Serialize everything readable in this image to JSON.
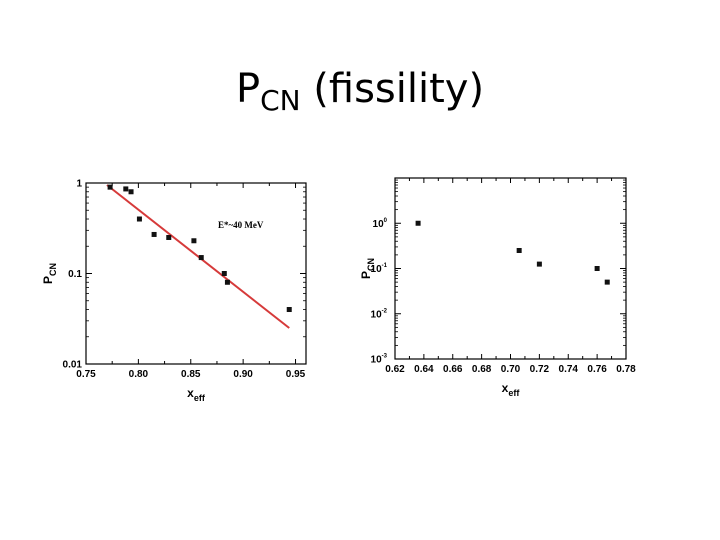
{
  "title": {
    "main": "P",
    "sub": "CN",
    "rest": " (fissility)"
  },
  "chart_data": [
    {
      "type": "scatter",
      "title": "",
      "xlabel": {
        "main": "x",
        "sub": "eff"
      },
      "ylabel": {
        "main": "P",
        "sub": "CN"
      },
      "xlim": [
        0.75,
        0.96
      ],
      "ylim": [
        0.01,
        1
      ],
      "yscale": "log",
      "xticks": [
        0.75,
        0.8,
        0.85,
        0.9,
        0.95
      ],
      "xticklabels": [
        "0.75",
        "0.80",
        "0.85",
        "0.90",
        "0.95"
      ],
      "yticks": [
        0.01,
        0.1,
        1
      ],
      "yticklabels": [
        "0.01",
        "0.1",
        "1"
      ],
      "annotation": "E*~40 MeV",
      "grid": false,
      "points": [
        {
          "x": 0.773,
          "y": 0.9
        },
        {
          "x": 0.788,
          "y": 0.86
        },
        {
          "x": 0.793,
          "y": 0.8
        },
        {
          "x": 0.801,
          "y": 0.4
        },
        {
          "x": 0.815,
          "y": 0.27
        },
        {
          "x": 0.829,
          "y": 0.25
        },
        {
          "x": 0.853,
          "y": 0.23
        },
        {
          "x": 0.86,
          "y": 0.15
        },
        {
          "x": 0.882,
          "y": 0.1
        },
        {
          "x": 0.885,
          "y": 0.08
        },
        {
          "x": 0.944,
          "y": 0.04
        }
      ],
      "fit_line": {
        "x": [
          0.77,
          0.944
        ],
        "y": [
          0.95,
          0.025
        ],
        "color": "#d63a3a"
      },
      "marker_color": "#111111"
    },
    {
      "type": "scatter",
      "title": "",
      "xlabel": {
        "main": "x",
        "sub": "eff"
      },
      "ylabel": {
        "main": "P",
        "sub": "CN"
      },
      "xlim": [
        0.62,
        0.78
      ],
      "ylim": [
        0.001,
        10
      ],
      "yscale": "log",
      "xticks": [
        0.62,
        0.64,
        0.66,
        0.68,
        0.7,
        0.72,
        0.74,
        0.76,
        0.78
      ],
      "xticklabels": [
        "0.62",
        "0.64",
        "0.66",
        "0.68",
        "0.70",
        "0.72",
        "0.74",
        "0.76",
        "0.78"
      ],
      "yticks": [
        0.001,
        0.01,
        0.1,
        1
      ],
      "yticklabels": [
        {
          "base": "10",
          "exp": "-3"
        },
        {
          "base": "10",
          "exp": "-2"
        },
        {
          "base": "10",
          "exp": "-1"
        },
        {
          "base": "10",
          "exp": "0"
        }
      ],
      "grid": false,
      "points": [
        {
          "x": 0.636,
          "y": 1.0
        },
        {
          "x": 0.706,
          "y": 0.25
        },
        {
          "x": 0.72,
          "y": 0.125
        },
        {
          "x": 0.76,
          "y": 0.1
        },
        {
          "x": 0.767,
          "y": 0.05
        }
      ],
      "marker_color": "#111111"
    }
  ]
}
